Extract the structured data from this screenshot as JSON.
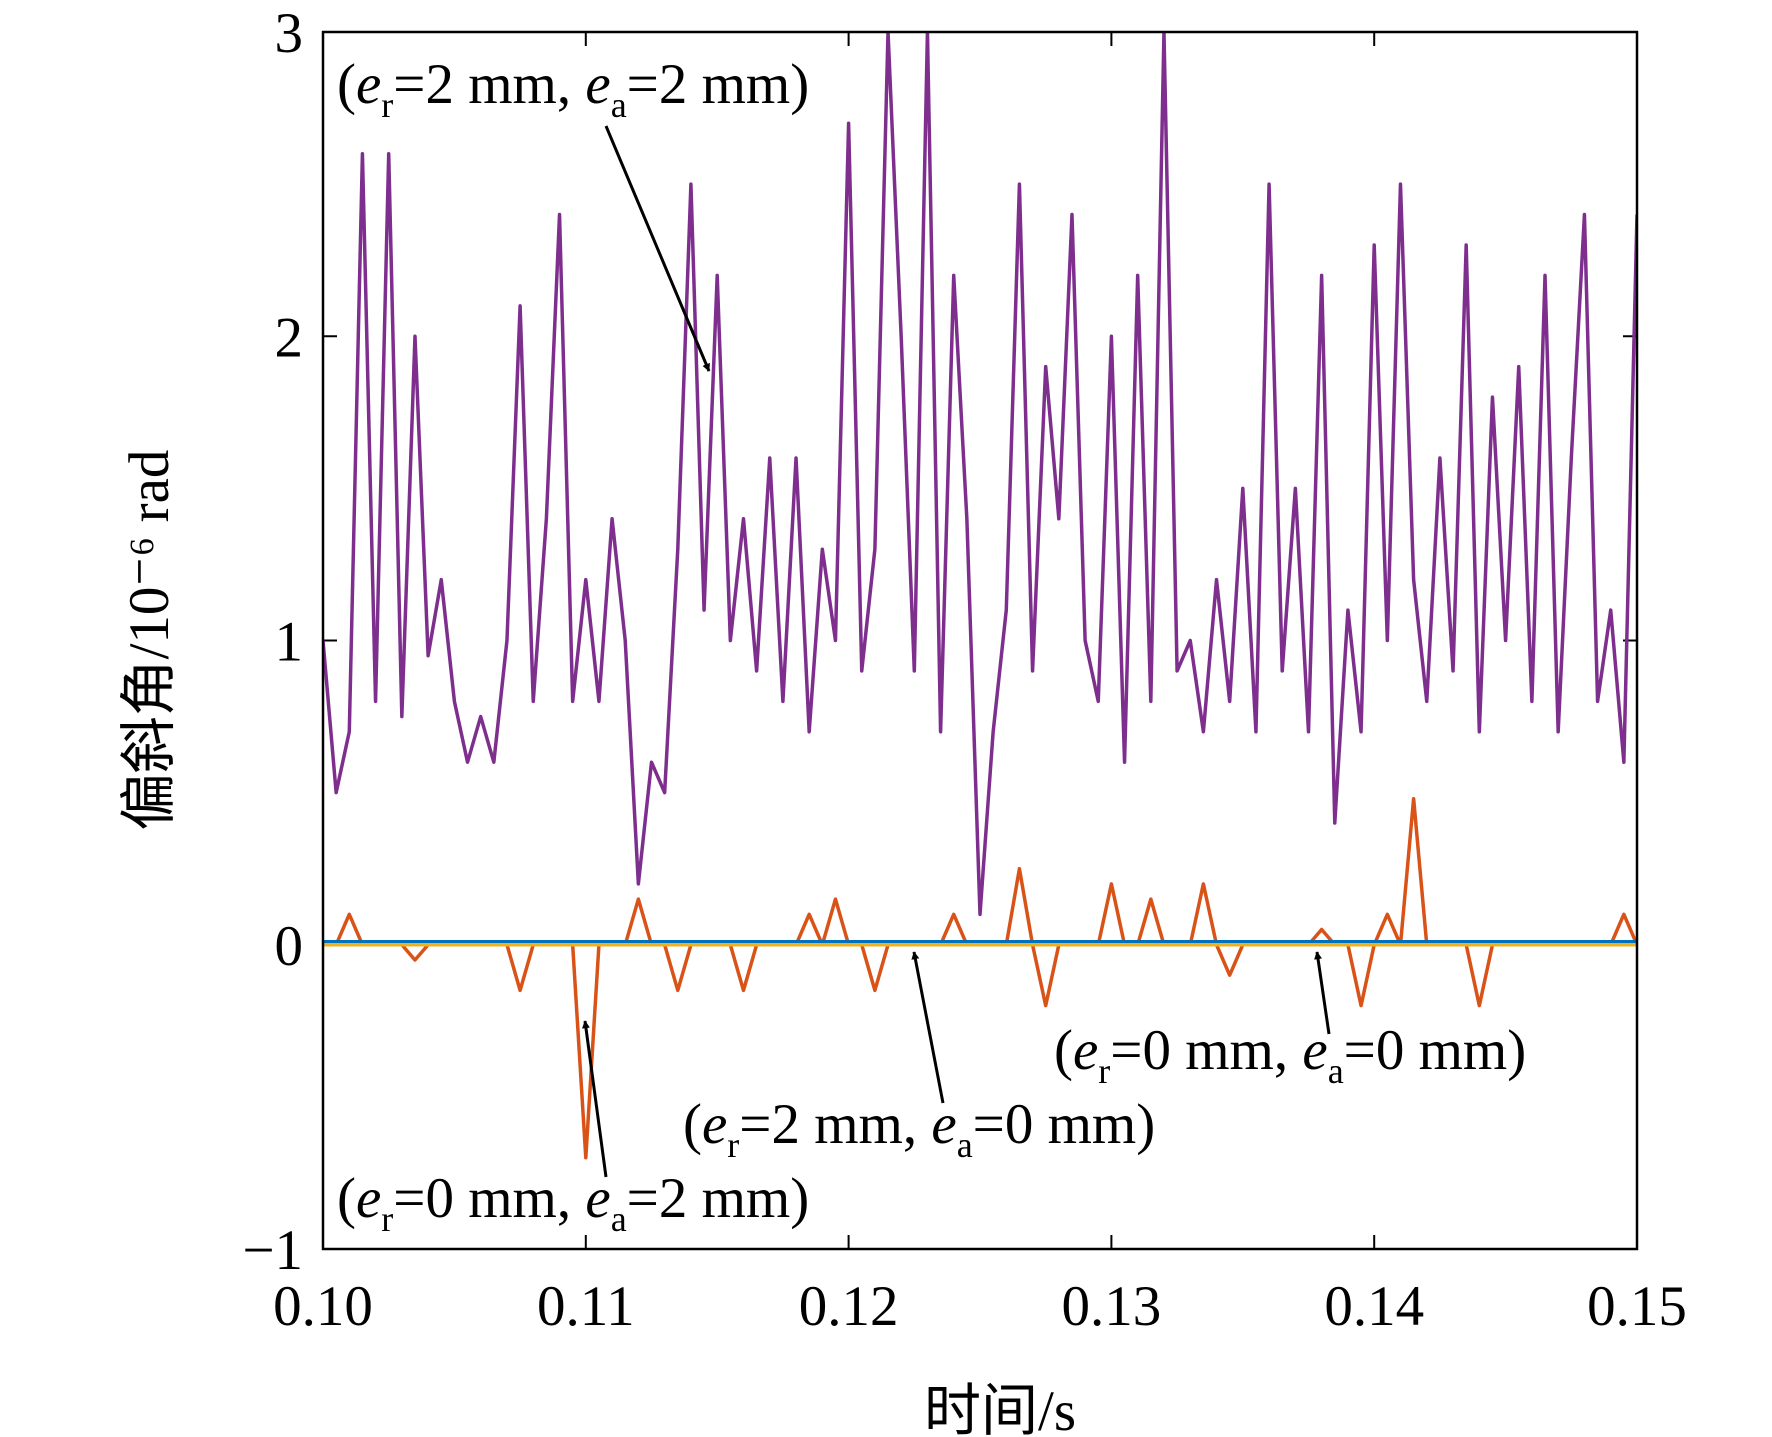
{
  "chart_data": {
    "type": "line",
    "y_label": "偏斜角/10⁻⁶ rad",
    "x_label": "时间/s",
    "xlim": [
      0.1,
      0.15
    ],
    "ylim": [
      -1,
      3
    ],
    "xticks": [
      {
        "value": 0.1,
        "label": "0.10"
      },
      0.11,
      0.12,
      0.13,
      0.14,
      {
        "value": 0.15,
        "label": "0.15"
      }
    ],
    "yticks": [
      {
        "value": -1,
        "label": "−1"
      },
      0,
      1,
      2,
      3
    ],
    "series": [
      {
        "color": "#7e2f8e",
        "x": [
          0.1,
          0.1005,
          0.101,
          0.1015,
          0.102,
          0.1025,
          0.103,
          0.1035,
          0.104,
          0.1045,
          0.105,
          0.1055,
          0.106,
          0.1065,
          0.107,
          0.1075,
          0.108,
          0.1085,
          0.109,
          0.1095,
          0.11,
          0.1105,
          0.111,
          0.1115,
          0.112,
          0.1125,
          0.113,
          0.1135,
          0.114,
          0.1145,
          0.115,
          0.1155,
          0.116,
          0.1165,
          0.117,
          0.1175,
          0.118,
          0.1185,
          0.119,
          0.1195,
          0.12,
          0.1205,
          0.121,
          0.1215,
          0.122,
          0.1225,
          0.123,
          0.1235,
          0.124,
          0.1245,
          0.125,
          0.1255,
          0.126,
          0.1265,
          0.127,
          0.1275,
          0.128,
          0.1285,
          0.129,
          0.1295,
          0.13,
          0.1305,
          0.131,
          0.1315,
          0.132,
          0.1325,
          0.133,
          0.1335,
          0.134,
          0.1345,
          0.135,
          0.1355,
          0.136,
          0.1365,
          0.137,
          0.1375,
          0.138,
          0.1385,
          0.139,
          0.1395,
          0.14,
          0.1405,
          0.141,
          0.1415,
          0.142,
          0.1425,
          0.143,
          0.1435,
          0.144,
          0.1445,
          0.145,
          0.1455,
          0.146,
          0.1465,
          0.147,
          0.1475,
          0.148,
          0.1485,
          0.149,
          0.1495,
          0.15
        ],
        "values": [
          1.0,
          0.5,
          0.7,
          2.6,
          0.8,
          2.6,
          0.75,
          2.0,
          0.95,
          1.2,
          0.8,
          0.6,
          0.75,
          0.6,
          1.0,
          2.1,
          0.8,
          1.4,
          2.4,
          0.8,
          1.2,
          0.8,
          1.4,
          1.0,
          0.2,
          0.6,
          0.5,
          1.3,
          2.5,
          1.1,
          2.2,
          1.0,
          1.4,
          0.9,
          1.6,
          0.8,
          1.6,
          0.7,
          1.3,
          1.0,
          2.7,
          0.9,
          1.3,
          3.0,
          2.0,
          0.9,
          3.0,
          0.7,
          2.2,
          1.4,
          0.1,
          0.7,
          1.1,
          2.5,
          0.9,
          1.9,
          1.4,
          2.4,
          1.0,
          0.8,
          2.0,
          0.6,
          2.2,
          0.8,
          3.0,
          0.9,
          1.0,
          0.7,
          1.2,
          0.8,
          1.5,
          0.7,
          2.5,
          0.9,
          1.5,
          0.7,
          2.2,
          0.4,
          1.1,
          0.7,
          2.3,
          1.0,
          2.5,
          1.2,
          0.8,
          1.6,
          0.9,
          2.3,
          0.7,
          1.8,
          1.0,
          1.9,
          0.8,
          2.2,
          0.7,
          1.6,
          2.4,
          0.8,
          1.1,
          0.6,
          2.4
        ]
      },
      {
        "color": "#d95319",
        "x": [
          0.1,
          0.1005,
          0.101,
          0.1015,
          0.102,
          0.1025,
          0.103,
          0.1035,
          0.104,
          0.1045,
          0.105,
          0.1055,
          0.106,
          0.1065,
          0.107,
          0.1075,
          0.108,
          0.1085,
          0.109,
          0.1095,
          0.11,
          0.1105,
          0.111,
          0.1115,
          0.112,
          0.1125,
          0.113,
          0.1135,
          0.114,
          0.1145,
          0.115,
          0.1155,
          0.116,
          0.1165,
          0.117,
          0.1175,
          0.118,
          0.1185,
          0.119,
          0.1195,
          0.12,
          0.1205,
          0.121,
          0.1215,
          0.122,
          0.1225,
          0.123,
          0.1235,
          0.124,
          0.1245,
          0.125,
          0.1255,
          0.126,
          0.1265,
          0.127,
          0.1275,
          0.128,
          0.1285,
          0.129,
          0.1295,
          0.13,
          0.1305,
          0.131,
          0.1315,
          0.132,
          0.1325,
          0.133,
          0.1335,
          0.134,
          0.1345,
          0.135,
          0.1355,
          0.136,
          0.1365,
          0.137,
          0.1375,
          0.138,
          0.1385,
          0.139,
          0.1395,
          0.14,
          0.1405,
          0.141,
          0.1415,
          0.142,
          0.1425,
          0.143,
          0.1435,
          0.144,
          0.1445,
          0.145,
          0.1455,
          0.146,
          0.1465,
          0.147,
          0.1475,
          0.148,
          0.1485,
          0.149,
          0.1495,
          0.15
        ],
        "values": [
          0,
          0,
          0.1,
          0,
          0,
          0,
          0,
          -0.05,
          0,
          0,
          0,
          0,
          0,
          0,
          0,
          -0.15,
          0,
          0,
          0,
          0,
          -0.7,
          0,
          0,
          0,
          0.15,
          0,
          0,
          -0.15,
          0,
          0,
          0,
          0,
          -0.15,
          0,
          0,
          0,
          0,
          0.1,
          0,
          0.15,
          0,
          0,
          -0.15,
          0,
          0,
          0,
          0,
          0,
          0.1,
          0,
          0,
          0,
          0,
          0.25,
          0,
          -0.2,
          0,
          0,
          0,
          0,
          0.2,
          0,
          0,
          0.15,
          0,
          0,
          0,
          0.2,
          0,
          -0.1,
          0,
          0,
          0,
          0,
          0,
          0,
          0.05,
          0,
          0,
          -0.2,
          0,
          0.1,
          0,
          0.48,
          0,
          0,
          0,
          0,
          -0.2,
          0,
          0,
          0,
          0,
          0,
          0,
          0,
          0,
          0,
          0,
          0.1,
          0
        ]
      },
      {
        "color": "#0072bd",
        "x": [
          0.1,
          0.15
        ],
        "values": [
          0.01,
          0.01
        ]
      },
      {
        "color": "#edb120",
        "x": [
          0.1,
          0.15
        ],
        "values": [
          0,
          0
        ]
      }
    ],
    "annotations": [
      {
        "text": [
          "(",
          "e",
          "r",
          "=2 mm, ",
          "e",
          "a",
          "=2 mm)"
        ]
      },
      {
        "text": [
          "(",
          "e",
          "r",
          "=0 mm, ",
          "e",
          "a",
          "=2 mm)"
        ]
      },
      {
        "text": [
          "(",
          "e",
          "r",
          "=2 mm, ",
          "e",
          "a",
          "=0 mm)"
        ]
      },
      {
        "text": [
          "(",
          "e",
          "r",
          "=0 mm, ",
          "e",
          "a",
          "=0 mm)"
        ]
      }
    ]
  }
}
